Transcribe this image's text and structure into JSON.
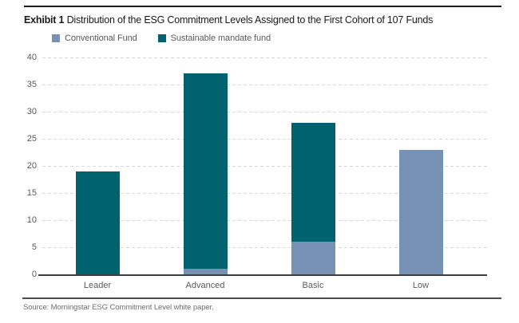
{
  "header": {
    "exhibit_label": "Exhibit 1",
    "title": "Distribution of the ESG Commitment Levels Assigned to the First Cohort of 107 Funds"
  },
  "legend": [
    {
      "label": "Conventional Fund",
      "color": "#7791B5"
    },
    {
      "label": "Sustainable mandate fund",
      "color": "#00626F"
    }
  ],
  "chart_data": {
    "type": "bar",
    "stacked": true,
    "title": "Distribution of the ESG Commitment Levels Assigned to the First Cohort of 107 Funds",
    "categories": [
      "Leader",
      "Advanced",
      "Basic",
      "Low"
    ],
    "series": [
      {
        "name": "Conventional Fund",
        "color": "#7791B5",
        "values": [
          0,
          1,
          6,
          23
        ]
      },
      {
        "name": "Sustainable mandate fund",
        "color": "#00626F",
        "values": [
          19,
          36,
          22,
          0
        ]
      }
    ],
    "totals": [
      19,
      37,
      28,
      23
    ],
    "xlabel": "",
    "ylabel": "",
    "ylim": [
      0,
      40
    ],
    "yticks": [
      0,
      5,
      10,
      15,
      20,
      25,
      30,
      35,
      40
    ],
    "grid": "horizontal-dashed",
    "legend_position": "top-left"
  },
  "source": "Source: Morningstar ESG Commitment Level white paper.",
  "colors": {
    "conventional": "#7791B5",
    "sustainable": "#00626F",
    "axis": "#3c3d3f",
    "gridline": "#d9d9d9",
    "text_muted": "#5a5b5e"
  }
}
